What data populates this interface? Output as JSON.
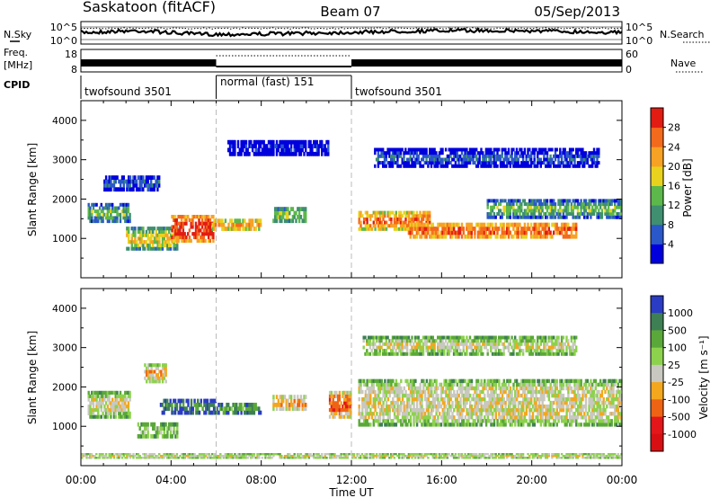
{
  "header": {
    "station": "Saskatoon (fitACF)",
    "beam": "Beam 07",
    "date": "05/Sep/2013"
  },
  "noise_panel": {
    "left_label": "N.Sky",
    "left_ticks": [
      "10^5",
      "10^0"
    ],
    "right_label": "N.Search",
    "right_ticks": [
      "10^5",
      "10^0"
    ]
  },
  "freq_panel": {
    "left_label_1": "Freq.",
    "left_label_2": "[MHz]",
    "left_ticks": [
      "18",
      "8"
    ],
    "right_label": "Nave",
    "right_ticks": [
      "60",
      "0"
    ]
  },
  "cpid": {
    "label": "CPID",
    "segments": [
      {
        "label": "twofsound 3501",
        "start_h": 0,
        "end_h": 6
      },
      {
        "label": "normal (fast) 151",
        "start_h": 6,
        "end_h": 12
      },
      {
        "label": "twofsound 3501",
        "start_h": 12,
        "end_h": 24
      }
    ]
  },
  "chart_data": [
    {
      "type": "heatmap",
      "name": "power",
      "ylabel": "Slant Range [km]",
      "y_ticks": [
        "1000",
        "2000",
        "3000",
        "4000"
      ],
      "ylim": [
        0,
        4500
      ],
      "xlim": [
        0,
        24
      ],
      "colorbar": {
        "label": "Power [dB]",
        "ticks": [
          "4",
          "8",
          "12",
          "16",
          "20",
          "24",
          "28"
        ],
        "colors": [
          "#0000dd",
          "#2a58c8",
          "#3f8f70",
          "#5cb84a",
          "#e8d21e",
          "#f7a224",
          "#f36a1c",
          "#e21c12"
        ]
      },
      "echo_bands": [
        {
          "t0": 0.3,
          "t1": 2.2,
          "r0": 1400,
          "r1": 1900,
          "level": 3
        },
        {
          "t0": 2.0,
          "t1": 4.3,
          "r0": 700,
          "r1": 1300,
          "level": 4
        },
        {
          "t0": 4.0,
          "t1": 5.9,
          "r0": 900,
          "r1": 1600,
          "level": 7
        },
        {
          "t0": 5.8,
          "t1": 8.0,
          "r0": 1200,
          "r1": 1500,
          "level": 6
        },
        {
          "t0": 8.5,
          "t1": 10.0,
          "r0": 1400,
          "r1": 1800,
          "level": 4
        },
        {
          "t0": 12.3,
          "t1": 15.5,
          "r0": 1200,
          "r1": 1700,
          "level": 6
        },
        {
          "t0": 14.5,
          "t1": 22.0,
          "r0": 1000,
          "r1": 1400,
          "level": 7
        },
        {
          "t0": 18.0,
          "t1": 24.0,
          "r0": 1500,
          "r1": 2000,
          "level": 3
        },
        {
          "t0": 6.5,
          "t1": 11.0,
          "r0": 3100,
          "r1": 3500,
          "level": 1
        },
        {
          "t0": 13.0,
          "t1": 23.0,
          "r0": 2800,
          "r1": 3300,
          "level": 1
        },
        {
          "t0": 1.0,
          "t1": 3.5,
          "r0": 2200,
          "r1": 2600,
          "level": 2
        }
      ]
    },
    {
      "type": "heatmap",
      "name": "velocity",
      "ylabel": "Slant Range [km]",
      "y_ticks": [
        "1000",
        "2000",
        "3000",
        "4000"
      ],
      "ylim": [
        0,
        4500
      ],
      "xlim": [
        0,
        24
      ],
      "colorbar": {
        "label": "Velocity [m s⁻¹]",
        "ticks": [
          "1000",
          "500",
          "100",
          "25",
          "-25",
          "-100",
          "-500",
          "-1000"
        ],
        "colors": [
          "#2a3cc4",
          "#3e7f54",
          "#5aa839",
          "#8cd24c",
          "#c8c8c0",
          "#f3a71e",
          "#ee6414",
          "#e3161a",
          "#d80f12"
        ]
      },
      "echo_bands": [
        {
          "t0": 0.3,
          "t1": 2.2,
          "r0": 1200,
          "r1": 1900,
          "level": 4
        },
        {
          "t0": 2.5,
          "t1": 4.3,
          "r0": 700,
          "r1": 1100,
          "level": 4
        },
        {
          "t0": 3.5,
          "t1": 6.0,
          "r0": 1300,
          "r1": 1700,
          "level": 2
        },
        {
          "t0": 2.8,
          "t1": 3.8,
          "r0": 2100,
          "r1": 2600,
          "level": 5
        },
        {
          "t0": 6.0,
          "t1": 8.0,
          "r0": 1300,
          "r1": 1600,
          "level": 3
        },
        {
          "t0": 8.5,
          "t1": 10.0,
          "r0": 1400,
          "r1": 1800,
          "level": 6
        },
        {
          "t0": 11.0,
          "t1": 12.0,
          "r0": 1200,
          "r1": 1900,
          "level": 6
        },
        {
          "t0": 12.3,
          "t1": 24.0,
          "r0": 1000,
          "r1": 2200,
          "level": 4
        },
        {
          "t0": 12.5,
          "t1": 22.0,
          "r0": 2800,
          "r1": 3300,
          "level": 4
        },
        {
          "t0": 0.0,
          "t1": 24.0,
          "r0": 180,
          "r1": 320,
          "level": 5
        }
      ]
    }
  ],
  "x_axis": {
    "label": "Time UT",
    "ticks": [
      "00:00",
      "04:00",
      "08:00",
      "12:00",
      "16:00",
      "20:00",
      "00:00"
    ]
  }
}
